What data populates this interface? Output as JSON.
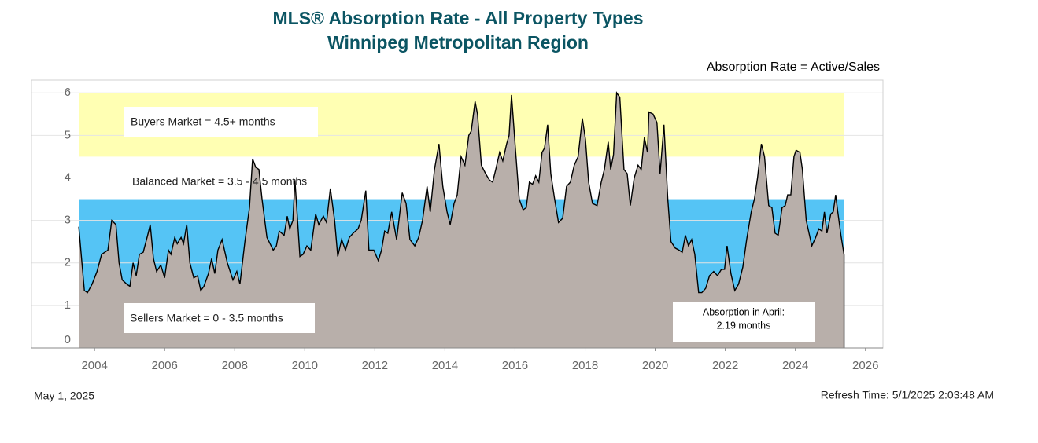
{
  "chart_data": {
    "type": "area",
    "title": "MLS® Absorption Rate - All Property Types",
    "subtitle": "Winnipeg Metropolitan Region",
    "formula_note": "Absorption Rate = Active/Sales",
    "date": "May 1, 2025",
    "refresh_time": "Refresh Time: 5/1/2025 2:03:48 AM",
    "bands": [
      {
        "label": "Buyers Market = 4.5+ months",
        "from": 4.5,
        "to": 6,
        "color": "#ffffb3"
      },
      {
        "label": "Balanced Market = 3.5 - 4.5 months",
        "from": 3.5,
        "to": 4.5,
        "color": "#ffffff"
      },
      {
        "label": "Sellers Market = 0 - 3.5 months",
        "from": 0,
        "to": 3.5,
        "color": "#55c4f5"
      }
    ],
    "annotation": [
      "Absorption in April:",
      "2.19 months"
    ],
    "xlim": [
      2002.2,
      2026.5
    ],
    "xticks": [
      2004,
      2006,
      2008,
      2010,
      2012,
      2014,
      2016,
      2018,
      2020,
      2022,
      2024,
      2026
    ],
    "ylim": [
      0,
      6.3
    ],
    "yticks": [
      0,
      1,
      2,
      3,
      4,
      5,
      6
    ],
    "grid": true,
    "series": [
      {
        "name": "Absorption Rate",
        "color": "#000000",
        "fill": "#b8afaa",
        "x": [
          2003.55,
          2003.71,
          2003.8,
          2003.93,
          2004.07,
          2004.2,
          2004.38,
          2004.49,
          2004.61,
          2004.7,
          2004.79,
          2004.92,
          2005.01,
          2005.1,
          2005.19,
          2005.28,
          2005.39,
          2005.53,
          2005.59,
          2005.68,
          2005.77,
          2005.89,
          2006.0,
          2006.11,
          2006.18,
          2006.29,
          2006.36,
          2006.47,
          2006.54,
          2006.63,
          2006.72,
          2006.83,
          2006.94,
          2007.03,
          2007.12,
          2007.25,
          2007.34,
          2007.43,
          2007.52,
          2007.64,
          2007.79,
          2007.95,
          2008.06,
          2008.15,
          2008.29,
          2008.42,
          2008.51,
          2008.6,
          2008.69,
          2008.78,
          2008.92,
          2009.1,
          2009.19,
          2009.27,
          2009.41,
          2009.5,
          2009.57,
          2009.66,
          2009.72,
          2009.86,
          2009.95,
          2010.06,
          2010.17,
          2010.31,
          2010.4,
          2010.53,
          2010.62,
          2010.73,
          2010.85,
          2010.94,
          2011.05,
          2011.16,
          2011.27,
          2011.38,
          2011.52,
          2011.61,
          2011.74,
          2011.83,
          2011.97,
          2012.1,
          2012.19,
          2012.28,
          2012.37,
          2012.48,
          2012.62,
          2012.78,
          2012.89,
          2013.0,
          2013.14,
          2013.25,
          2013.36,
          2013.49,
          2013.58,
          2013.7,
          2013.83,
          2013.94,
          2014.06,
          2014.15,
          2014.26,
          2014.35,
          2014.46,
          2014.57,
          2014.68,
          2014.75,
          2014.86,
          2014.93,
          2015.04,
          2015.16,
          2015.27,
          2015.36,
          2015.45,
          2015.56,
          2015.65,
          2015.76,
          2015.83,
          2015.9,
          2016.01,
          2016.12,
          2016.23,
          2016.32,
          2016.41,
          2016.5,
          2016.59,
          2016.68,
          2016.77,
          2016.84,
          2016.93,
          2017.02,
          2017.13,
          2017.24,
          2017.36,
          2017.47,
          2017.58,
          2017.69,
          2017.8,
          2017.92,
          2018.01,
          2018.1,
          2018.21,
          2018.34,
          2018.46,
          2018.55,
          2018.66,
          2018.73,
          2018.81,
          2018.9,
          2018.99,
          2019.11,
          2019.2,
          2019.29,
          2019.4,
          2019.51,
          2019.6,
          2019.69,
          2019.78,
          2019.82,
          2019.94,
          2020.05,
          2020.14,
          2020.25,
          2020.36,
          2020.45,
          2020.57,
          2020.68,
          2020.77,
          2020.86,
          2020.95,
          2021.04,
          2021.13,
          2021.24,
          2021.33,
          2021.44,
          2021.55,
          2021.67,
          2021.78,
          2021.89,
          2021.98,
          2022.05,
          2022.16,
          2022.27,
          2022.38,
          2022.5,
          2022.61,
          2022.74,
          2022.83,
          2022.92,
          2023.03,
          2023.12,
          2023.24,
          2023.33,
          2023.42,
          2023.51,
          2023.62,
          2023.71,
          2023.78,
          2023.87,
          2023.96,
          2024.02,
          2024.13,
          2024.2,
          2024.31,
          2024.47,
          2024.58,
          2024.67,
          2024.76,
          2024.83,
          2024.9,
          2025.01,
          2025.08,
          2025.15,
          2025.21,
          2025.3,
          2025.39
        ],
        "values": [
          2.85,
          1.35,
          1.3,
          1.5,
          1.8,
          2.2,
          2.3,
          3.0,
          2.9,
          2.0,
          1.6,
          1.5,
          1.45,
          2.0,
          1.7,
          2.2,
          2.25,
          2.7,
          2.9,
          2.1,
          1.8,
          1.95,
          1.65,
          2.3,
          2.2,
          2.6,
          2.45,
          2.6,
          2.45,
          2.9,
          2.0,
          1.65,
          1.7,
          1.35,
          1.45,
          1.75,
          2.1,
          1.75,
          2.3,
          2.55,
          2.0,
          1.6,
          1.8,
          1.5,
          2.5,
          3.3,
          4.45,
          4.25,
          4.2,
          3.5,
          2.6,
          2.3,
          2.4,
          2.75,
          2.65,
          3.1,
          2.8,
          3.0,
          3.95,
          2.15,
          2.2,
          2.4,
          2.3,
          3.15,
          2.9,
          3.1,
          2.95,
          3.75,
          3.0,
          2.15,
          2.55,
          2.3,
          2.6,
          2.7,
          2.8,
          3.0,
          3.7,
          2.3,
          2.3,
          2.05,
          2.3,
          2.75,
          2.7,
          3.2,
          2.55,
          3.65,
          3.4,
          2.55,
          2.4,
          2.6,
          3.0,
          3.8,
          3.2,
          4.2,
          4.8,
          3.8,
          3.2,
          2.9,
          3.4,
          3.6,
          4.5,
          4.3,
          5.0,
          5.1,
          5.8,
          5.5,
          4.3,
          4.1,
          3.95,
          3.9,
          4.2,
          4.6,
          4.4,
          4.8,
          5.0,
          5.95,
          4.7,
          3.5,
          3.25,
          3.3,
          3.9,
          3.85,
          4.05,
          3.9,
          4.6,
          4.7,
          5.25,
          4.1,
          3.5,
          2.95,
          3.05,
          3.8,
          3.9,
          4.3,
          4.5,
          5.4,
          4.9,
          3.9,
          3.4,
          3.35,
          3.9,
          4.2,
          4.85,
          4.2,
          4.55,
          6.0,
          5.9,
          4.2,
          4.1,
          3.35,
          4.0,
          4.3,
          4.2,
          4.95,
          4.6,
          5.55,
          5.5,
          5.3,
          4.1,
          5.25,
          3.5,
          2.5,
          2.35,
          2.3,
          2.25,
          2.65,
          2.4,
          2.55,
          2.2,
          1.3,
          1.3,
          1.4,
          1.7,
          1.8,
          1.7,
          1.85,
          1.85,
          2.4,
          1.75,
          1.35,
          1.5,
          1.9,
          2.55,
          3.2,
          3.5,
          4.0,
          4.8,
          4.5,
          3.35,
          3.3,
          2.7,
          2.65,
          3.3,
          3.35,
          3.6,
          3.6,
          4.5,
          4.65,
          4.6,
          4.2,
          3.0,
          2.4,
          2.6,
          2.8,
          2.75,
          3.2,
          2.7,
          3.15,
          3.2,
          3.6,
          3.2,
          2.65,
          2.19
        ]
      }
    ]
  }
}
